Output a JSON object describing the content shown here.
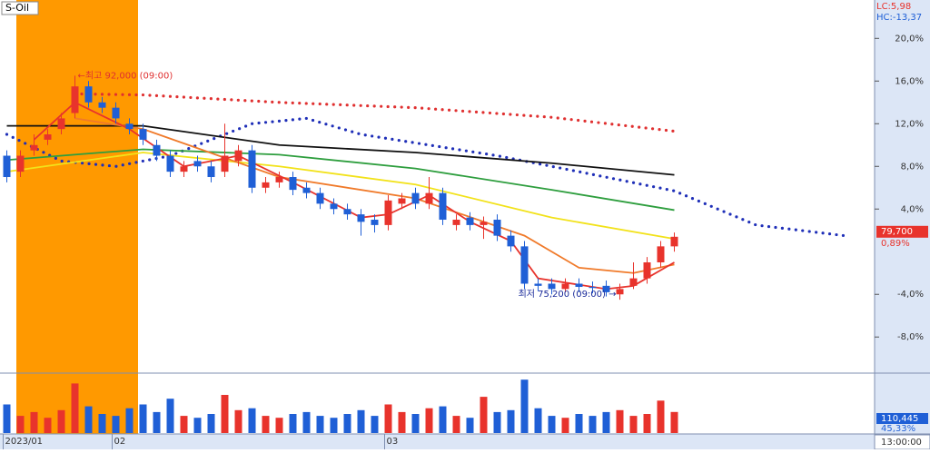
{
  "chart_data": [
    {
      "type": "candlestick",
      "title": "S-Oil",
      "stats": [
        {
          "text": "LC:5,98",
          "color": "#e8332c"
        },
        {
          "text": "HC:-13,37",
          "color": "#1f5fd6"
        }
      ],
      "open": [
        9,
        7.5,
        9.5,
        10.5,
        11.5,
        13,
        15.5,
        14,
        13.5,
        12,
        11.5,
        10,
        9,
        7.5,
        8.5,
        8,
        7.5,
        8.5,
        9.5,
        6,
        6.5,
        7,
        6,
        5.5,
        4.5,
        4,
        3.5,
        3,
        2.5,
        4.5,
        5.5,
        4.5,
        5.5,
        2.5,
        3.2,
        2.5,
        3,
        1.5,
        0.5,
        -3,
        -3,
        -3.5,
        -3,
        -3.3,
        -3.2,
        -4,
        -3.2,
        -2.5,
        -1,
        0.5
      ],
      "high": [
        9.5,
        9.5,
        11,
        11.5,
        13,
        16.5,
        16,
        14.5,
        14,
        12.5,
        12,
        10.5,
        9.5,
        8.5,
        9,
        8.5,
        12,
        10,
        10,
        7,
        7.5,
        7.5,
        6.5,
        6,
        5,
        4.5,
        4,
        3.5,
        5.3,
        5.5,
        6,
        7,
        6,
        3.5,
        3.7,
        3.3,
        3.5,
        2,
        1,
        -2.5,
        -2.5,
        -2.5,
        -2.5,
        -2.8,
        -2.7,
        -3,
        -1,
        -0.5,
        1,
        1.8
      ],
      "low": [
        6.5,
        7,
        9,
        10,
        11,
        12.5,
        13.5,
        13,
        12,
        11,
        10,
        8.5,
        7,
        7,
        7.5,
        6.5,
        7,
        8,
        5.5,
        5.5,
        6,
        5.3,
        5,
        4,
        3.5,
        3,
        1.5,
        1.8,
        2,
        4,
        4,
        4,
        2.5,
        2,
        2,
        1.2,
        1,
        0,
        -3.5,
        -3.7,
        -4,
        -3.8,
        -3.8,
        -3.9,
        -4.2,
        -4.5,
        -3.5,
        -3,
        -1.5,
        0
      ],
      "close": [
        7,
        9,
        10,
        11,
        12.5,
        15.5,
        14,
        13.5,
        12.5,
        11.5,
        10.5,
        9,
        7.5,
        8,
        8,
        7,
        9,
        9.5,
        6,
        6.5,
        7,
        5.8,
        5.5,
        4.5,
        4,
        3.5,
        2.8,
        2.5,
        4.8,
        5,
        4.5,
        5.5,
        3,
        3,
        2.5,
        2.8,
        1.5,
        0.5,
        -3,
        -3.2,
        -3.5,
        -3,
        -3.3,
        -3.4,
        -3.8,
        -3.5,
        -2.5,
        -1,
        0.5,
        1.4
      ],
      "up_color": "#e8332c",
      "down_color": "#1f5fd6",
      "series": [
        {
          "color": "#1f2fb8",
          "style": "dotted",
          "x": [
            0,
            4,
            8,
            12,
            15,
            18,
            22,
            26,
            30,
            36,
            42,
            49,
            55,
            61.5
          ],
          "values": [
            11,
            8.5,
            8,
            9,
            10.5,
            12,
            12.5,
            11,
            10.2,
            9,
            7.5,
            5.7,
            2.5,
            1.5
          ]
        },
        {
          "color": "#e03030",
          "style": "dotted",
          "x": [
            5,
            10,
            20,
            30,
            40,
            49
          ],
          "values": [
            14.8,
            14.7,
            14,
            13.5,
            12.6,
            11.3
          ]
        },
        {
          "color": "#111111",
          "style": "solid",
          "x": [
            0,
            10,
            20,
            30,
            40,
            49
          ],
          "values": [
            11.8,
            11.8,
            10,
            9.3,
            8.3,
            7.2
          ]
        },
        {
          "color": "#2e9e3e",
          "style": "solid",
          "x": [
            0,
            10,
            20,
            30,
            40,
            49
          ],
          "values": [
            8.6,
            9.6,
            9.1,
            7.8,
            5.8,
            3.9
          ]
        },
        {
          "color": "#f2e21a",
          "style": "solid",
          "x": [
            0,
            10,
            20,
            30,
            40,
            49
          ],
          "values": [
            7.5,
            9.3,
            8,
            6.3,
            3.2,
            1.2
          ]
        },
        {
          "color": "#f07a2a",
          "style": "solid",
          "x": [
            5,
            10,
            20,
            30,
            38,
            42,
            46,
            49
          ],
          "values": [
            12.5,
            11.5,
            7,
            5,
            1.5,
            -1.5,
            -2,
            -1.2
          ]
        },
        {
          "color": "#e8332c",
          "style": "solid",
          "x": [
            2,
            5,
            9,
            13,
            17,
            21,
            26,
            28,
            31,
            34,
            37,
            39,
            44,
            46,
            49
          ],
          "values": [
            10.5,
            14,
            11.5,
            8,
            9,
            6.5,
            3.2,
            3.5,
            5.3,
            2.8,
            1,
            -2.5,
            -3.5,
            -3.2,
            -1
          ]
        }
      ],
      "annotations": [
        {
          "text": "←최고 92,000 (09:00)",
          "color": "#e03030"
        },
        {
          "text": "최저 75,200 (09:00) →",
          "color": "#1a2a9a"
        }
      ],
      "last_price": {
        "label": "79,700",
        "change": "0,89%"
      },
      "xlim": [
        -0.5,
        63.7
      ],
      "xticks": [
        {
          "value": 0,
          "label": "2023/01"
        },
        {
          "value": 8,
          "label": "02"
        },
        {
          "value": 28,
          "label": "03"
        }
      ],
      "cursor_time": "13:00:00",
      "ylim": [
        -11.3,
        23.6
      ],
      "yticks": [
        {
          "value": 20,
          "label": "20,0%"
        },
        {
          "value": 16,
          "label": "16,0%"
        },
        {
          "value": 12,
          "label": "12,0%"
        },
        {
          "value": 8,
          "label": "8,0%"
        },
        {
          "value": 4,
          "label": "4,0%"
        },
        {
          "value": -4,
          "label": "-4,0%"
        },
        {
          "value": -8,
          "label": "-8,0%"
        }
      ]
    },
    {
      "type": "bar",
      "values": [
        150000,
        90000,
        110000,
        80000,
        120000,
        260000,
        140000,
        100000,
        90000,
        130000,
        150000,
        110000,
        180000,
        90000,
        80000,
        100000,
        200000,
        120000,
        130000,
        90000,
        80000,
        100000,
        110000,
        90000,
        80000,
        100000,
        120000,
        90000,
        150000,
        110000,
        100000,
        130000,
        140000,
        90000,
        80000,
        190000,
        110000,
        120000,
        280000,
        130000,
        90000,
        80000,
        100000,
        90000,
        110000,
        120000,
        90000,
        100000,
        170000,
        110445
      ],
      "last_value_label": "110,445",
      "ratio_label": "45,33%",
      "ylim": [
        0,
        300000
      ]
    }
  ]
}
